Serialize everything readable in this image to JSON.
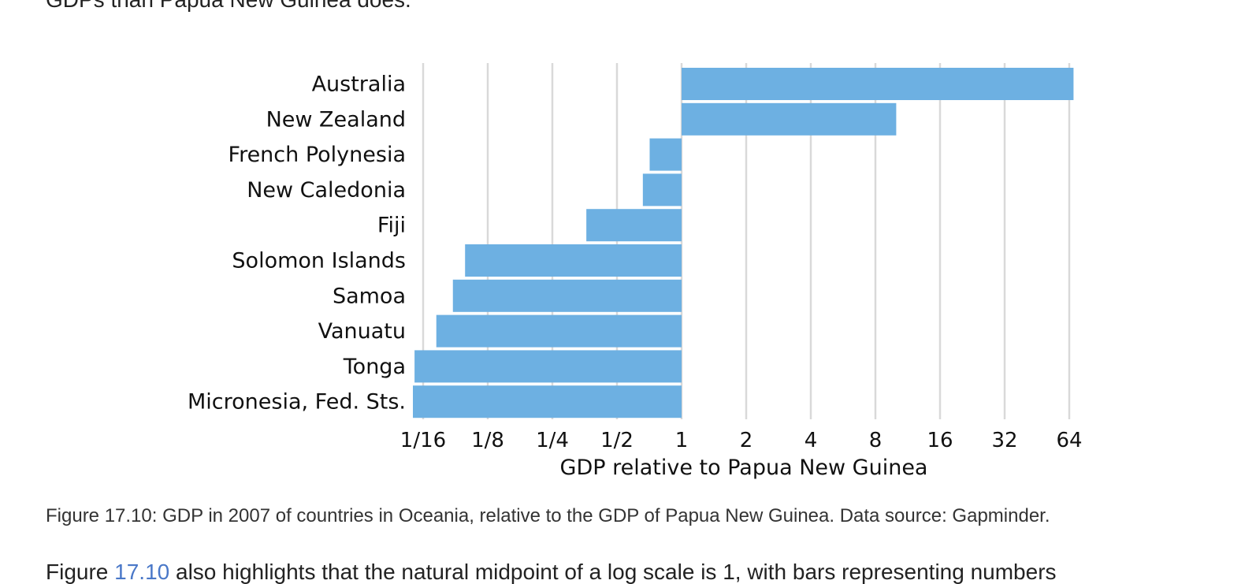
{
  "text": {
    "top": "GDPs than Papua New Guinea does.",
    "caption": "Figure 17.10: GDP in 2007 of countries in Oceania, relative to the GDP of Papua New Guinea. Data source: Gapminder.",
    "bottom_ref": "17.10",
    "bottom_prefix": "Figure ",
    "bottom_rest": " also highlights that the natural midpoint of a log scale is 1, with bars representing numbers"
  },
  "colors": {
    "bar": "#6db0e2",
    "grid": "#d9d9d9",
    "text": "#111111"
  },
  "chart_data": {
    "type": "bar",
    "orientation": "horizontal",
    "categories": [
      "Australia",
      "New Zealand",
      "French Polynesia",
      "New Caledonia",
      "Fiji",
      "Solomon Islands",
      "Samoa",
      "Vanuatu",
      "Tonga",
      "Micronesia, Fed. Sts."
    ],
    "values": [
      67,
      10,
      0.71,
      0.66,
      0.36,
      0.098,
      0.086,
      0.072,
      0.057,
      0.056
    ],
    "baseline": 1,
    "x_scale": "log2",
    "xlim": [
      0.05,
      70
    ],
    "xticks": [
      0.0625,
      0.125,
      0.25,
      0.5,
      1,
      2,
      4,
      8,
      16,
      32,
      64
    ],
    "xtick_labels": [
      "1/16",
      "1/8",
      "1/4",
      "1/2",
      "1",
      "2",
      "4",
      "8",
      "16",
      "32",
      "64"
    ],
    "xlabel": "GDP relative to Papua New Guinea",
    "grid": "vertical"
  }
}
